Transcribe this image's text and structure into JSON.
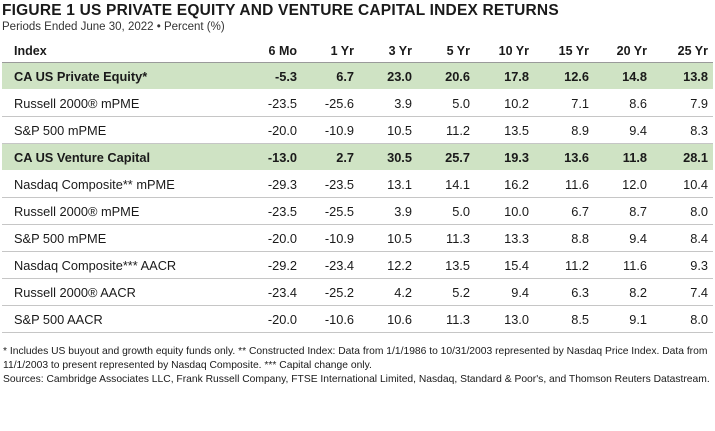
{
  "figure": {
    "title": "FIGURE 1  US PRIVATE EQUITY AND VENTURE CAPITAL INDEX RETURNS",
    "subtitle": "Periods Ended June 30, 2022 • Percent (%)"
  },
  "table": {
    "columns": [
      "Index",
      "6 Mo",
      "1 Yr",
      "3 Yr",
      "5 Yr",
      "10 Yr",
      "15 Yr",
      "20 Yr",
      "25 Yr"
    ],
    "rows": [
      {
        "name": "CA US Private Equity*",
        "highlight": true,
        "values": [
          "-5.3",
          "6.7",
          "23.0",
          "20.6",
          "17.8",
          "12.6",
          "14.8",
          "13.8"
        ]
      },
      {
        "name": "Russell 2000® mPME",
        "highlight": false,
        "values": [
          "-23.5",
          "-25.6",
          "3.9",
          "5.0",
          "10.2",
          "7.1",
          "8.6",
          "7.9"
        ]
      },
      {
        "name": "S&P 500 mPME",
        "highlight": false,
        "values": [
          "-20.0",
          "-10.9",
          "10.5",
          "11.2",
          "13.5",
          "8.9",
          "9.4",
          "8.3"
        ]
      },
      {
        "name": "CA US Venture Capital",
        "highlight": true,
        "values": [
          "-13.0",
          "2.7",
          "30.5",
          "25.7",
          "19.3",
          "13.6",
          "11.8",
          "28.1"
        ]
      },
      {
        "name": "Nasdaq Composite** mPME",
        "highlight": false,
        "values": [
          "-29.3",
          "-23.5",
          "13.1",
          "14.1",
          "16.2",
          "11.6",
          "12.0",
          "10.4"
        ]
      },
      {
        "name": "Russell 2000® mPME",
        "highlight": false,
        "values": [
          "-23.5",
          "-25.5",
          "3.9",
          "5.0",
          "10.0",
          "6.7",
          "8.7",
          "8.0"
        ]
      },
      {
        "name": "S&P 500 mPME",
        "highlight": false,
        "values": [
          "-20.0",
          "-10.9",
          "10.5",
          "11.3",
          "13.3",
          "8.8",
          "9.4",
          "8.4"
        ]
      },
      {
        "name": "Nasdaq Composite*** AACR",
        "highlight": false,
        "values": [
          "-29.2",
          "-23.4",
          "12.2",
          "13.5",
          "15.4",
          "11.2",
          "11.6",
          "9.3"
        ]
      },
      {
        "name": "Russell 2000® AACR",
        "highlight": false,
        "values": [
          "-23.4",
          "-25.2",
          "4.2",
          "5.2",
          "9.4",
          "6.3",
          "8.2",
          "7.4"
        ]
      },
      {
        "name": "S&P 500 AACR",
        "highlight": false,
        "values": [
          "-20.0",
          "-10.6",
          "10.6",
          "11.3",
          "13.0",
          "8.5",
          "9.1",
          "8.0"
        ]
      }
    ]
  },
  "notes": {
    "footnote": "* Includes US buyout and growth equity funds only. ** Constructed Index: Data from 1/1/1986 to 10/31/2003 represented by Nasdaq Price Index. Data from 11/1/2003 to present represented by Nasdaq Composite. *** Capital change only.",
    "sources": "Sources: Cambridge Associates LLC, Frank Russell Company, FTSE International Limited, Nasdaq, Standard & Poor's, and Thomson Reuters Datastream."
  },
  "colors": {
    "highlight_row": "#cfe3c4"
  }
}
